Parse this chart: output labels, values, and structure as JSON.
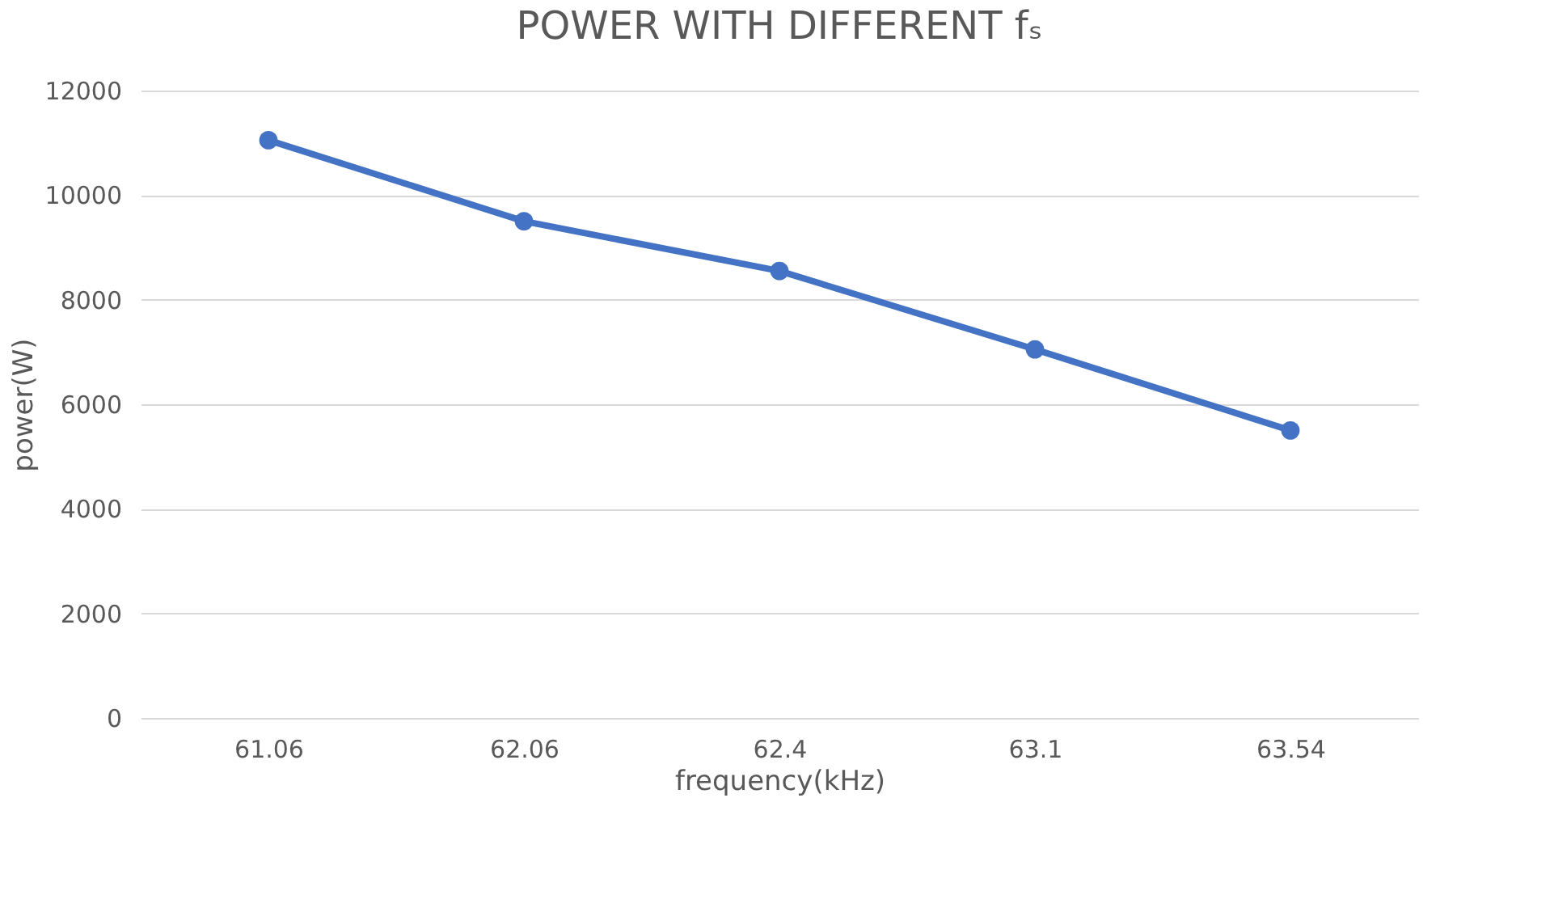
{
  "chart_data": {
    "type": "line",
    "title": "POWER WITH DIFFERENT fₛ",
    "xlabel": "frequency(kHz)",
    "ylabel": "power(W)",
    "categories": [
      "61.06",
      "62.06",
      "62.4",
      "63.1",
      "63.54"
    ],
    "series": [
      {
        "color": "#4472c4",
        "values": [
          11050,
          9500,
          8550,
          7050,
          5500
        ]
      }
    ],
    "ylim": [
      0,
      12000
    ],
    "yticks": [
      0,
      2000,
      4000,
      6000,
      8000,
      10000,
      12000
    ],
    "grid": "y",
    "marker": "circle",
    "line_style": "solid"
  }
}
